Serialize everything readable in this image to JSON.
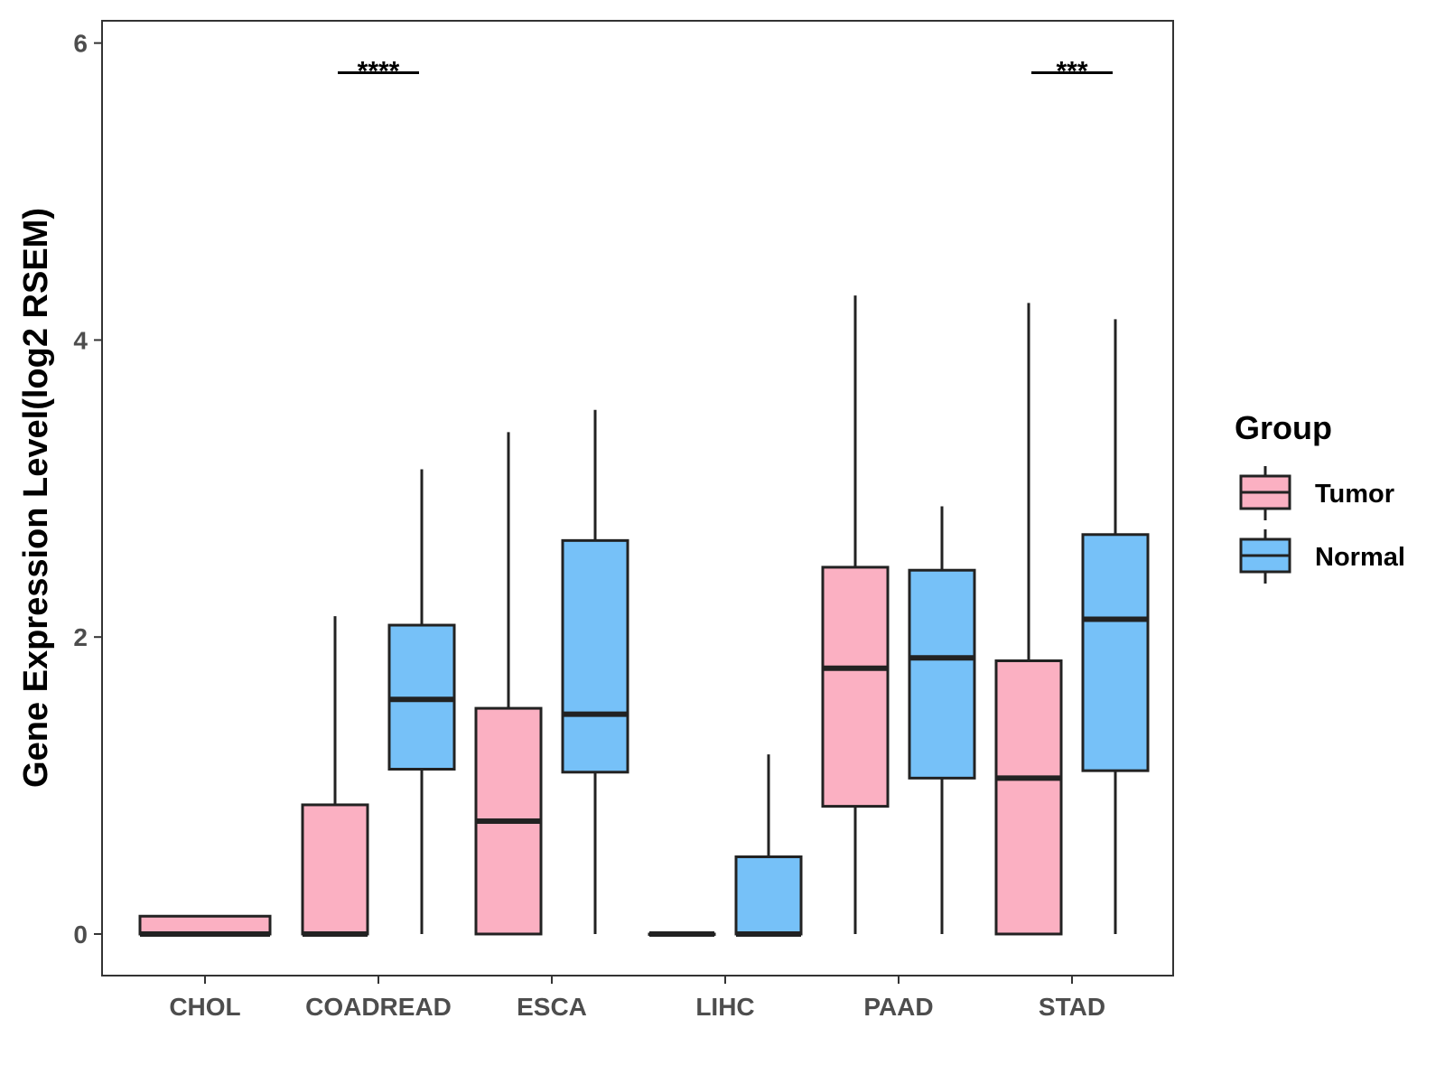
{
  "chart_data": {
    "type": "boxplot",
    "title": "",
    "xlabel": "",
    "ylabel": "Gene Expression Level(log2 RSEM)",
    "ylim": [
      -0.28,
      6.15
    ],
    "yticks": [
      0,
      2,
      4,
      6
    ],
    "grid": false,
    "categories": [
      "CHOL",
      "COADREAD",
      "ESCA",
      "LIHC",
      "PAAD",
      "STAD"
    ],
    "legend": {
      "title": "Group",
      "position": "right",
      "entries": [
        {
          "name": "Tumor",
          "color": "#FBB0C2"
        },
        {
          "name": "Normal",
          "color": "#76C1F8"
        }
      ]
    },
    "series": [
      {
        "name": "Tumor",
        "color": "#FBB0C2",
        "boxes": [
          {
            "category": "CHOL",
            "min": 0,
            "q1": 0,
            "median": 0,
            "q3": 0.12,
            "max": 0.12,
            "wide": true
          },
          {
            "category": "COADREAD",
            "min": 0,
            "q1": 0,
            "median": 0,
            "q3": 0.87,
            "max": 2.14
          },
          {
            "category": "ESCA",
            "min": 0,
            "q1": 0,
            "median": 0.76,
            "q3": 1.52,
            "max": 3.38
          },
          {
            "category": "LIHC",
            "min": 0,
            "q1": 0,
            "median": 0,
            "q3": 0,
            "max": 0
          },
          {
            "category": "PAAD",
            "min": 0,
            "q1": 0.86,
            "median": 1.79,
            "q3": 2.47,
            "max": 4.3
          },
          {
            "category": "STAD",
            "min": 0,
            "q1": 0,
            "median": 1.05,
            "q3": 1.84,
            "max": 4.25
          }
        ]
      },
      {
        "name": "Normal",
        "color": "#76C1F8",
        "boxes": [
          {
            "category": "COADREAD",
            "min": 0,
            "q1": 1.11,
            "median": 1.58,
            "q3": 2.08,
            "max": 3.13
          },
          {
            "category": "ESCA",
            "min": 0,
            "q1": 1.09,
            "median": 1.48,
            "q3": 2.65,
            "max": 3.53
          },
          {
            "category": "LIHC",
            "min": 0,
            "q1": 0,
            "median": 0,
            "q3": 0.52,
            "max": 1.21
          },
          {
            "category": "PAAD",
            "min": 0,
            "q1": 1.05,
            "median": 1.86,
            "q3": 2.45,
            "max": 2.88
          },
          {
            "category": "STAD",
            "min": 0,
            "q1": 1.1,
            "median": 2.12,
            "q3": 2.69,
            "max": 4.14
          }
        ]
      }
    ],
    "annotations": [
      {
        "category": "COADREAD",
        "text": "****",
        "y": 5.8
      },
      {
        "category": "STAD",
        "text": "***",
        "y": 5.8
      }
    ]
  }
}
